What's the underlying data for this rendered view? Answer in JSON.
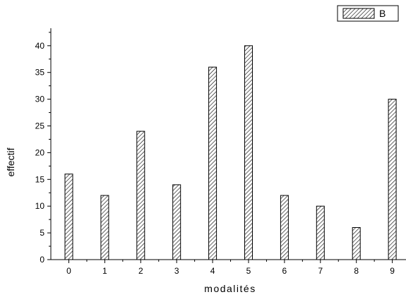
{
  "chart_data": {
    "type": "bar",
    "categories": [
      "0",
      "1",
      "2",
      "3",
      "4",
      "5",
      "6",
      "7",
      "8",
      "9"
    ],
    "series": [
      {
        "name": "B",
        "values": [
          16,
          12,
          24,
          14,
          36,
          40,
          12,
          10,
          6,
          30
        ]
      }
    ],
    "xlabel": "modalités",
    "ylabel": "effectif",
    "ylim": [
      0,
      45
    ],
    "yticks": [
      "0",
      "5",
      "10",
      "15",
      "20",
      "25",
      "30",
      "35",
      "40"
    ],
    "legend_position": "top-right",
    "grid": false,
    "bar_fill": "hatched",
    "colors": {
      "axis": "#000000",
      "bar_stroke": "#000000",
      "hatch": "#000000",
      "background": "#ffffff"
    }
  }
}
